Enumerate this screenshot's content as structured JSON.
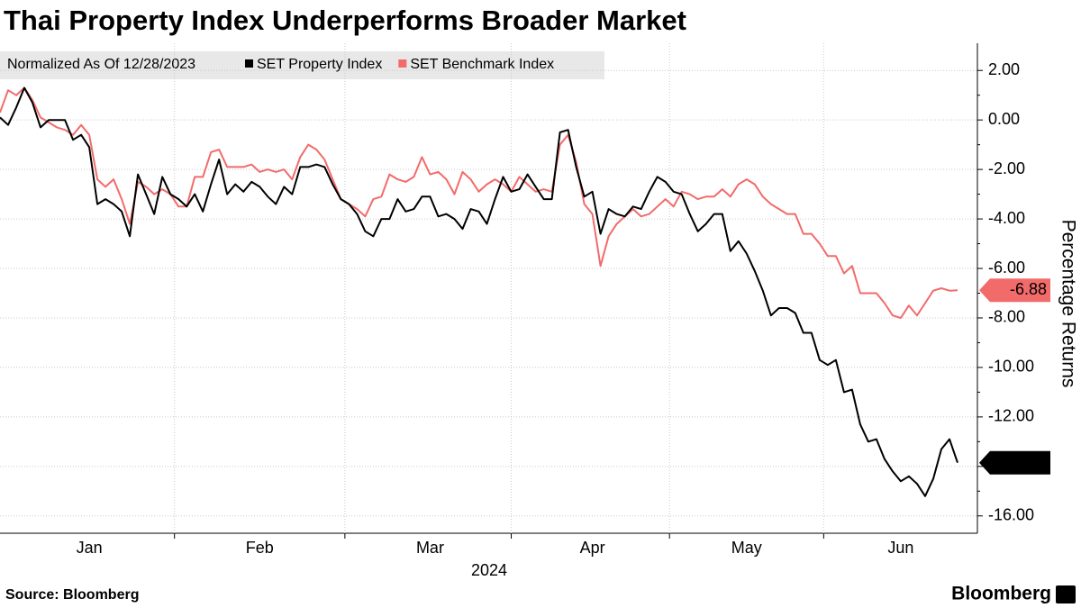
{
  "chart_data": {
    "type": "line",
    "title": "Thai Property Index Underperforms Broader Market",
    "subtitle": "Normalized As Of 12/28/2023",
    "y_axis_label": "Percentage Returns",
    "x_axis_label": "2024",
    "source": "Source: Bloomberg",
    "brand": "Bloomberg",
    "categories": [
      null,
      null,
      null,
      null,
      null,
      null,
      null,
      null,
      null,
      null,
      null,
      "Jan",
      null,
      null,
      null,
      null,
      null,
      null,
      null,
      null,
      null,
      null,
      null,
      null,
      null,
      null,
      null,
      null,
      null,
      null,
      null,
      null,
      "Feb",
      null,
      null,
      null,
      null,
      null,
      null,
      null,
      null,
      null,
      null,
      null,
      null,
      null,
      null,
      null,
      null,
      null,
      null,
      null,
      null,
      "Mar",
      null,
      null,
      null,
      null,
      null,
      null,
      null,
      null,
      null,
      null,
      null,
      null,
      null,
      null,
      null,
      null,
      null,
      null,
      null,
      "Apr",
      null,
      null,
      null,
      null,
      null,
      null,
      null,
      null,
      null,
      null,
      null,
      null,
      null,
      null,
      null,
      null,
      null,
      null,
      "May",
      null,
      null,
      null,
      null,
      null,
      null,
      null,
      null,
      null,
      null,
      null,
      null,
      null,
      null,
      null,
      null,
      null,
      null,
      "Jun",
      null,
      null,
      null,
      null,
      null,
      null,
      null
    ],
    "series": [
      {
        "name": "SET Property Index",
        "color": "#000000",
        "values": [
          0.1,
          -0.2,
          0.5,
          1.3,
          0.7,
          -0.3,
          0,
          0,
          0,
          -0.8,
          -0.6,
          -1.1,
          -3.4,
          -3.2,
          -3.4,
          -3.7,
          -4.7,
          -2.2,
          -3.0,
          -3.8,
          -2.3,
          -3.0,
          -3.2,
          -3.5,
          -3.0,
          -3.7,
          -2.6,
          -1.6,
          -3.0,
          -2.6,
          -2.9,
          -2.5,
          -2.7,
          -3.1,
          -3.4,
          -2.7,
          -3.0,
          -1.9,
          -1.9,
          -1.8,
          -1.9,
          -2.6,
          -3.2,
          -3.4,
          -3.8,
          -4.5,
          -4.7,
          -4.0,
          -4.0,
          -3.2,
          -3.7,
          -3.6,
          -3.1,
          -3.1,
          -3.9,
          -3.8,
          -4.0,
          -4.4,
          -3.6,
          -3.7,
          -4.2,
          -3.2,
          -2.3,
          -2.9,
          -2.8,
          -2.2,
          -2.7,
          -3.2,
          -3.2,
          -0.5,
          -0.4,
          -1.9,
          -3.1,
          -2.9,
          -4.6,
          -3.6,
          -3.8,
          -3.9,
          -3.5,
          -3.6,
          -2.9,
          -2.3,
          -2.5,
          -2.9,
          -3.0,
          -3.8,
          -4.5,
          -4.2,
          -3.8,
          -3.8,
          -5.3,
          -4.9,
          -5.4,
          -6.1,
          -6.9,
          -7.9,
          -7.6,
          -7.6,
          -7.8,
          -8.6,
          -8.6,
          -9.7,
          -9.9,
          -9.7,
          -11.0,
          -10.9,
          -12.3,
          -13.0,
          -12.9,
          -13.7,
          -14.2,
          -14.6,
          -14.4,
          -14.7,
          -15.2,
          -14.5,
          -13.3,
          -12.9,
          -13.85
        ]
      },
      {
        "name": "SET Benchmark Index",
        "color": "#f26b6b",
        "values": [
          0.3,
          1.2,
          1.0,
          1.3,
          0.8,
          0.1,
          -0.1,
          -0.3,
          -0.4,
          -0.6,
          -0.2,
          -0.6,
          -2.4,
          -2.7,
          -2.4,
          -3.2,
          -4.2,
          -2.5,
          -2.7,
          -3.0,
          -2.8,
          -3.0,
          -3.5,
          -3.5,
          -2.3,
          -2.3,
          -1.3,
          -1.2,
          -1.9,
          -1.9,
          -1.9,
          -1.8,
          -2.1,
          -2.0,
          -2.1,
          -2.0,
          -2.4,
          -1.5,
          -1.0,
          -1.2,
          -1.6,
          -2.4,
          -3.2,
          -3.4,
          -3.6,
          -3.9,
          -3.2,
          -3.1,
          -2.2,
          -2.4,
          -2.5,
          -2.3,
          -1.5,
          -2.2,
          -2.1,
          -2.4,
          -3.0,
          -2.1,
          -2.4,
          -2.9,
          -2.6,
          -2.4,
          -2.6,
          -2.9,
          -2.3,
          -2.6,
          -2.9,
          -2.8,
          -2.9,
          -1.0,
          -0.6,
          -1.7,
          -3.4,
          -3.8,
          -5.9,
          -4.7,
          -4.2,
          -3.9,
          -3.6,
          -3.9,
          -3.8,
          -3.5,
          -3.2,
          -3.5,
          -2.9,
          -3.0,
          -3.2,
          -3.1,
          -3.1,
          -2.8,
          -3.1,
          -2.6,
          -2.4,
          -2.6,
          -3.1,
          -3.4,
          -3.6,
          -3.8,
          -3.8,
          -4.6,
          -4.6,
          -5.0,
          -5.5,
          -5.5,
          -6.2,
          -5.9,
          -7.0,
          -7.0,
          -7.0,
          -7.4,
          -7.9,
          -8.0,
          -7.5,
          -7.9,
          -7.4,
          -6.9,
          -6.8,
          -6.9,
          -6.88
        ]
      }
    ],
    "ylim": [
      -16.7,
      3.1
    ],
    "yticks": [
      {
        "value": 2,
        "label": "2.00"
      },
      {
        "value": 0,
        "label": "0.00"
      },
      {
        "value": -2,
        "label": "-2.00"
      },
      {
        "value": -4,
        "label": "-4.00"
      },
      {
        "value": -6,
        "label": "-6.00"
      },
      {
        "value": -8,
        "label": "-8.00"
      },
      {
        "value": -10,
        "label": "-10.00"
      },
      {
        "value": -12,
        "label": "-12.00"
      },
      {
        "value": -14,
        "label": "-14.00"
      },
      {
        "value": -16,
        "label": "-16.00"
      }
    ],
    "grid": true
  }
}
